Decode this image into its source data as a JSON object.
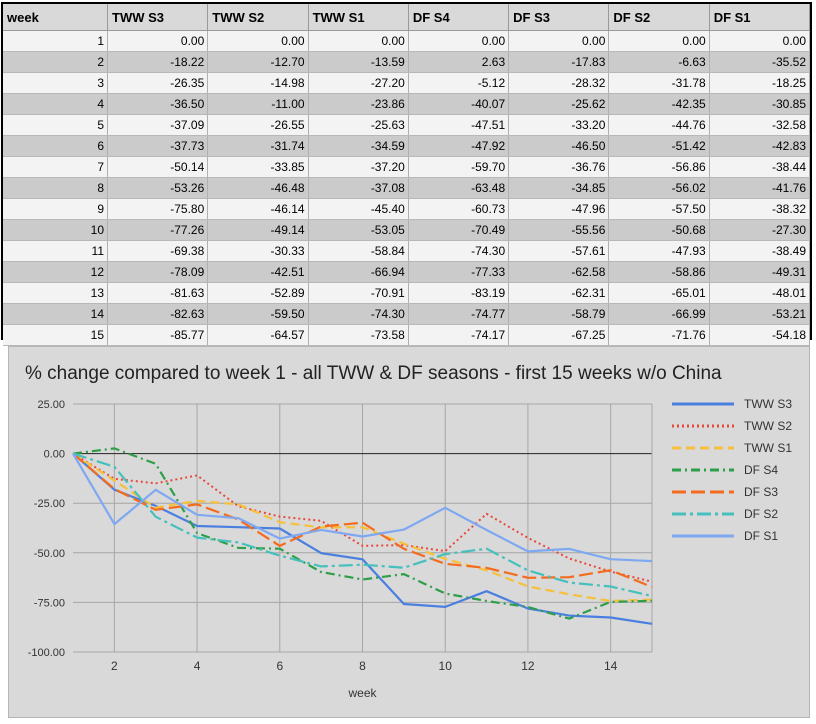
{
  "table": {
    "headers": [
      "week",
      "TWW S3",
      "TWW S2",
      "TWW S1",
      "DF S4",
      "DF S3",
      "DF S2",
      "DF S1"
    ],
    "rows": [
      [
        "1",
        "0.00",
        "0.00",
        "0.00",
        "0.00",
        "0.00",
        "0.00",
        "0.00"
      ],
      [
        "2",
        "-18.22",
        "-12.70",
        "-13.59",
        "2.63",
        "-17.83",
        "-6.63",
        "-35.52"
      ],
      [
        "3",
        "-26.35",
        "-14.98",
        "-27.20",
        "-5.12",
        "-28.32",
        "-31.78",
        "-18.25"
      ],
      [
        "4",
        "-36.50",
        "-11.00",
        "-23.86",
        "-40.07",
        "-25.62",
        "-42.35",
        "-30.85"
      ],
      [
        "5",
        "-37.09",
        "-26.55",
        "-25.63",
        "-47.51",
        "-33.20",
        "-44.76",
        "-32.58"
      ],
      [
        "6",
        "-37.73",
        "-31.74",
        "-34.59",
        "-47.92",
        "-46.50",
        "-51.42",
        "-42.83"
      ],
      [
        "7",
        "-50.14",
        "-33.85",
        "-37.20",
        "-59.70",
        "-36.76",
        "-56.86",
        "-38.44"
      ],
      [
        "8",
        "-53.26",
        "-46.48",
        "-37.08",
        "-63.48",
        "-34.85",
        "-56.02",
        "-41.76"
      ],
      [
        "9",
        "-75.80",
        "-46.14",
        "-45.40",
        "-60.73",
        "-47.96",
        "-57.50",
        "-38.32"
      ],
      [
        "10",
        "-77.26",
        "-49.14",
        "-53.05",
        "-70.49",
        "-55.56",
        "-50.68",
        "-27.30"
      ],
      [
        "11",
        "-69.38",
        "-30.33",
        "-58.84",
        "-74.30",
        "-57.61",
        "-47.93",
        "-38.49"
      ],
      [
        "12",
        "-78.09",
        "-42.51",
        "-66.94",
        "-77.33",
        "-62.58",
        "-58.86",
        "-49.31"
      ],
      [
        "13",
        "-81.63",
        "-52.89",
        "-70.91",
        "-83.19",
        "-62.31",
        "-65.01",
        "-48.01"
      ],
      [
        "14",
        "-82.63",
        "-59.50",
        "-74.30",
        "-74.77",
        "-58.79",
        "-66.99",
        "-53.21"
      ],
      [
        "15",
        "-85.77",
        "-64.57",
        "-73.58",
        "-74.17",
        "-67.25",
        "-71.76",
        "-54.18"
      ]
    ]
  },
  "chart_data": {
    "type": "line",
    "title": "% change compared to week 1 - all TWW & DF seasons - first 15 weeks w/o China",
    "xlabel": "week",
    "ylabel": "",
    "x": [
      1,
      2,
      3,
      4,
      5,
      6,
      7,
      8,
      9,
      10,
      11,
      12,
      13,
      14,
      15
    ],
    "xlim": [
      1,
      15
    ],
    "ylim": [
      -100,
      25
    ],
    "xticks": [
      "2",
      "4",
      "6",
      "8",
      "10",
      "12",
      "14"
    ],
    "yticks": [
      "25.00",
      "0.00",
      "-25.00",
      "-50.00",
      "-75.00",
      "-100.00"
    ],
    "grid": true,
    "legend": "right",
    "series": [
      {
        "name": "TWW S3",
        "color": "#4a7fe0",
        "dash": "solid",
        "values": [
          0.0,
          -18.22,
          -26.35,
          -36.5,
          -37.09,
          -37.73,
          -50.14,
          -53.26,
          -75.8,
          -77.26,
          -69.38,
          -78.09,
          -81.63,
          -82.63,
          -85.77
        ]
      },
      {
        "name": "TWW S2",
        "color": "#e8483a",
        "dash": "dotted",
        "values": [
          0.0,
          -12.7,
          -14.98,
          -11.0,
          -26.55,
          -31.74,
          -33.85,
          -46.48,
          -46.14,
          -49.14,
          -30.33,
          -42.51,
          -52.89,
          -59.5,
          -64.57
        ]
      },
      {
        "name": "TWW S1",
        "color": "#f6c03a",
        "dash": "dashed",
        "values": [
          0.0,
          -13.59,
          -27.2,
          -23.86,
          -25.63,
          -34.59,
          -37.2,
          -37.08,
          -45.4,
          -53.05,
          -58.84,
          -66.94,
          -70.91,
          -74.3,
          -73.58
        ]
      },
      {
        "name": "DF S4",
        "color": "#2e9e49",
        "dash": "dashdot",
        "values": [
          0.0,
          2.63,
          -5.12,
          -40.07,
          -47.51,
          -47.92,
          -59.7,
          -63.48,
          -60.73,
          -70.49,
          -74.3,
          -77.33,
          -83.19,
          -74.77,
          -74.17
        ]
      },
      {
        "name": "DF S3",
        "color": "#f46b1d",
        "dash": "longdash",
        "values": [
          0.0,
          -17.83,
          -28.32,
          -25.62,
          -33.2,
          -46.5,
          -36.76,
          -34.85,
          -47.96,
          -55.56,
          -57.61,
          -62.58,
          -62.31,
          -58.79,
          -67.25
        ]
      },
      {
        "name": "DF S2",
        "color": "#45c0bd",
        "dash": "longdashdot",
        "values": [
          0.0,
          -6.63,
          -31.78,
          -42.35,
          -44.76,
          -51.42,
          -56.86,
          -56.02,
          -57.5,
          -50.68,
          -47.93,
          -58.86,
          -65.01,
          -66.99,
          -71.76
        ]
      },
      {
        "name": "DF S1",
        "color": "#7fa8f2",
        "dash": "solid",
        "values": [
          0.0,
          -35.52,
          -18.25,
          -30.85,
          -32.58,
          -42.83,
          -38.44,
          -41.76,
          -38.32,
          -27.3,
          -38.49,
          -49.31,
          -48.01,
          -53.21,
          -54.18
        ]
      }
    ]
  }
}
